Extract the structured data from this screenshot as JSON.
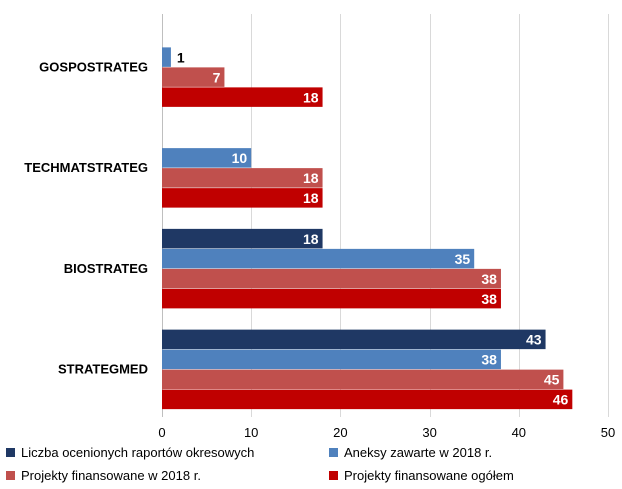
{
  "chart_data": {
    "type": "bar",
    "orientation": "horizontal",
    "categories": [
      "GOSPOSTRATEG",
      "TECHMATSTRATEG",
      "BIOSTRATEG",
      "STRATEGMED"
    ],
    "series": [
      {
        "name": "Liczba ocenionych raportów okresowych",
        "color": "#1F3864",
        "values": [
          null,
          null,
          18,
          43
        ]
      },
      {
        "name": "Aneksy zawarte w 2018 r.",
        "color": "#4F81BD",
        "values": [
          1,
          10,
          35,
          38
        ]
      },
      {
        "name": "Projekty finansowane w 2018 r.",
        "color": "#C0504D",
        "values": [
          7,
          18,
          38,
          45
        ]
      },
      {
        "name": "Projekty finansowane ogółem",
        "color": "#C00000",
        "values": [
          18,
          18,
          38,
          46
        ]
      }
    ],
    "xlim": [
      0,
      50
    ],
    "xticks": [
      0,
      10,
      20,
      30,
      40,
      50
    ],
    "grid": "vertical",
    "legend_position": "bottom",
    "data_labels": true
  }
}
